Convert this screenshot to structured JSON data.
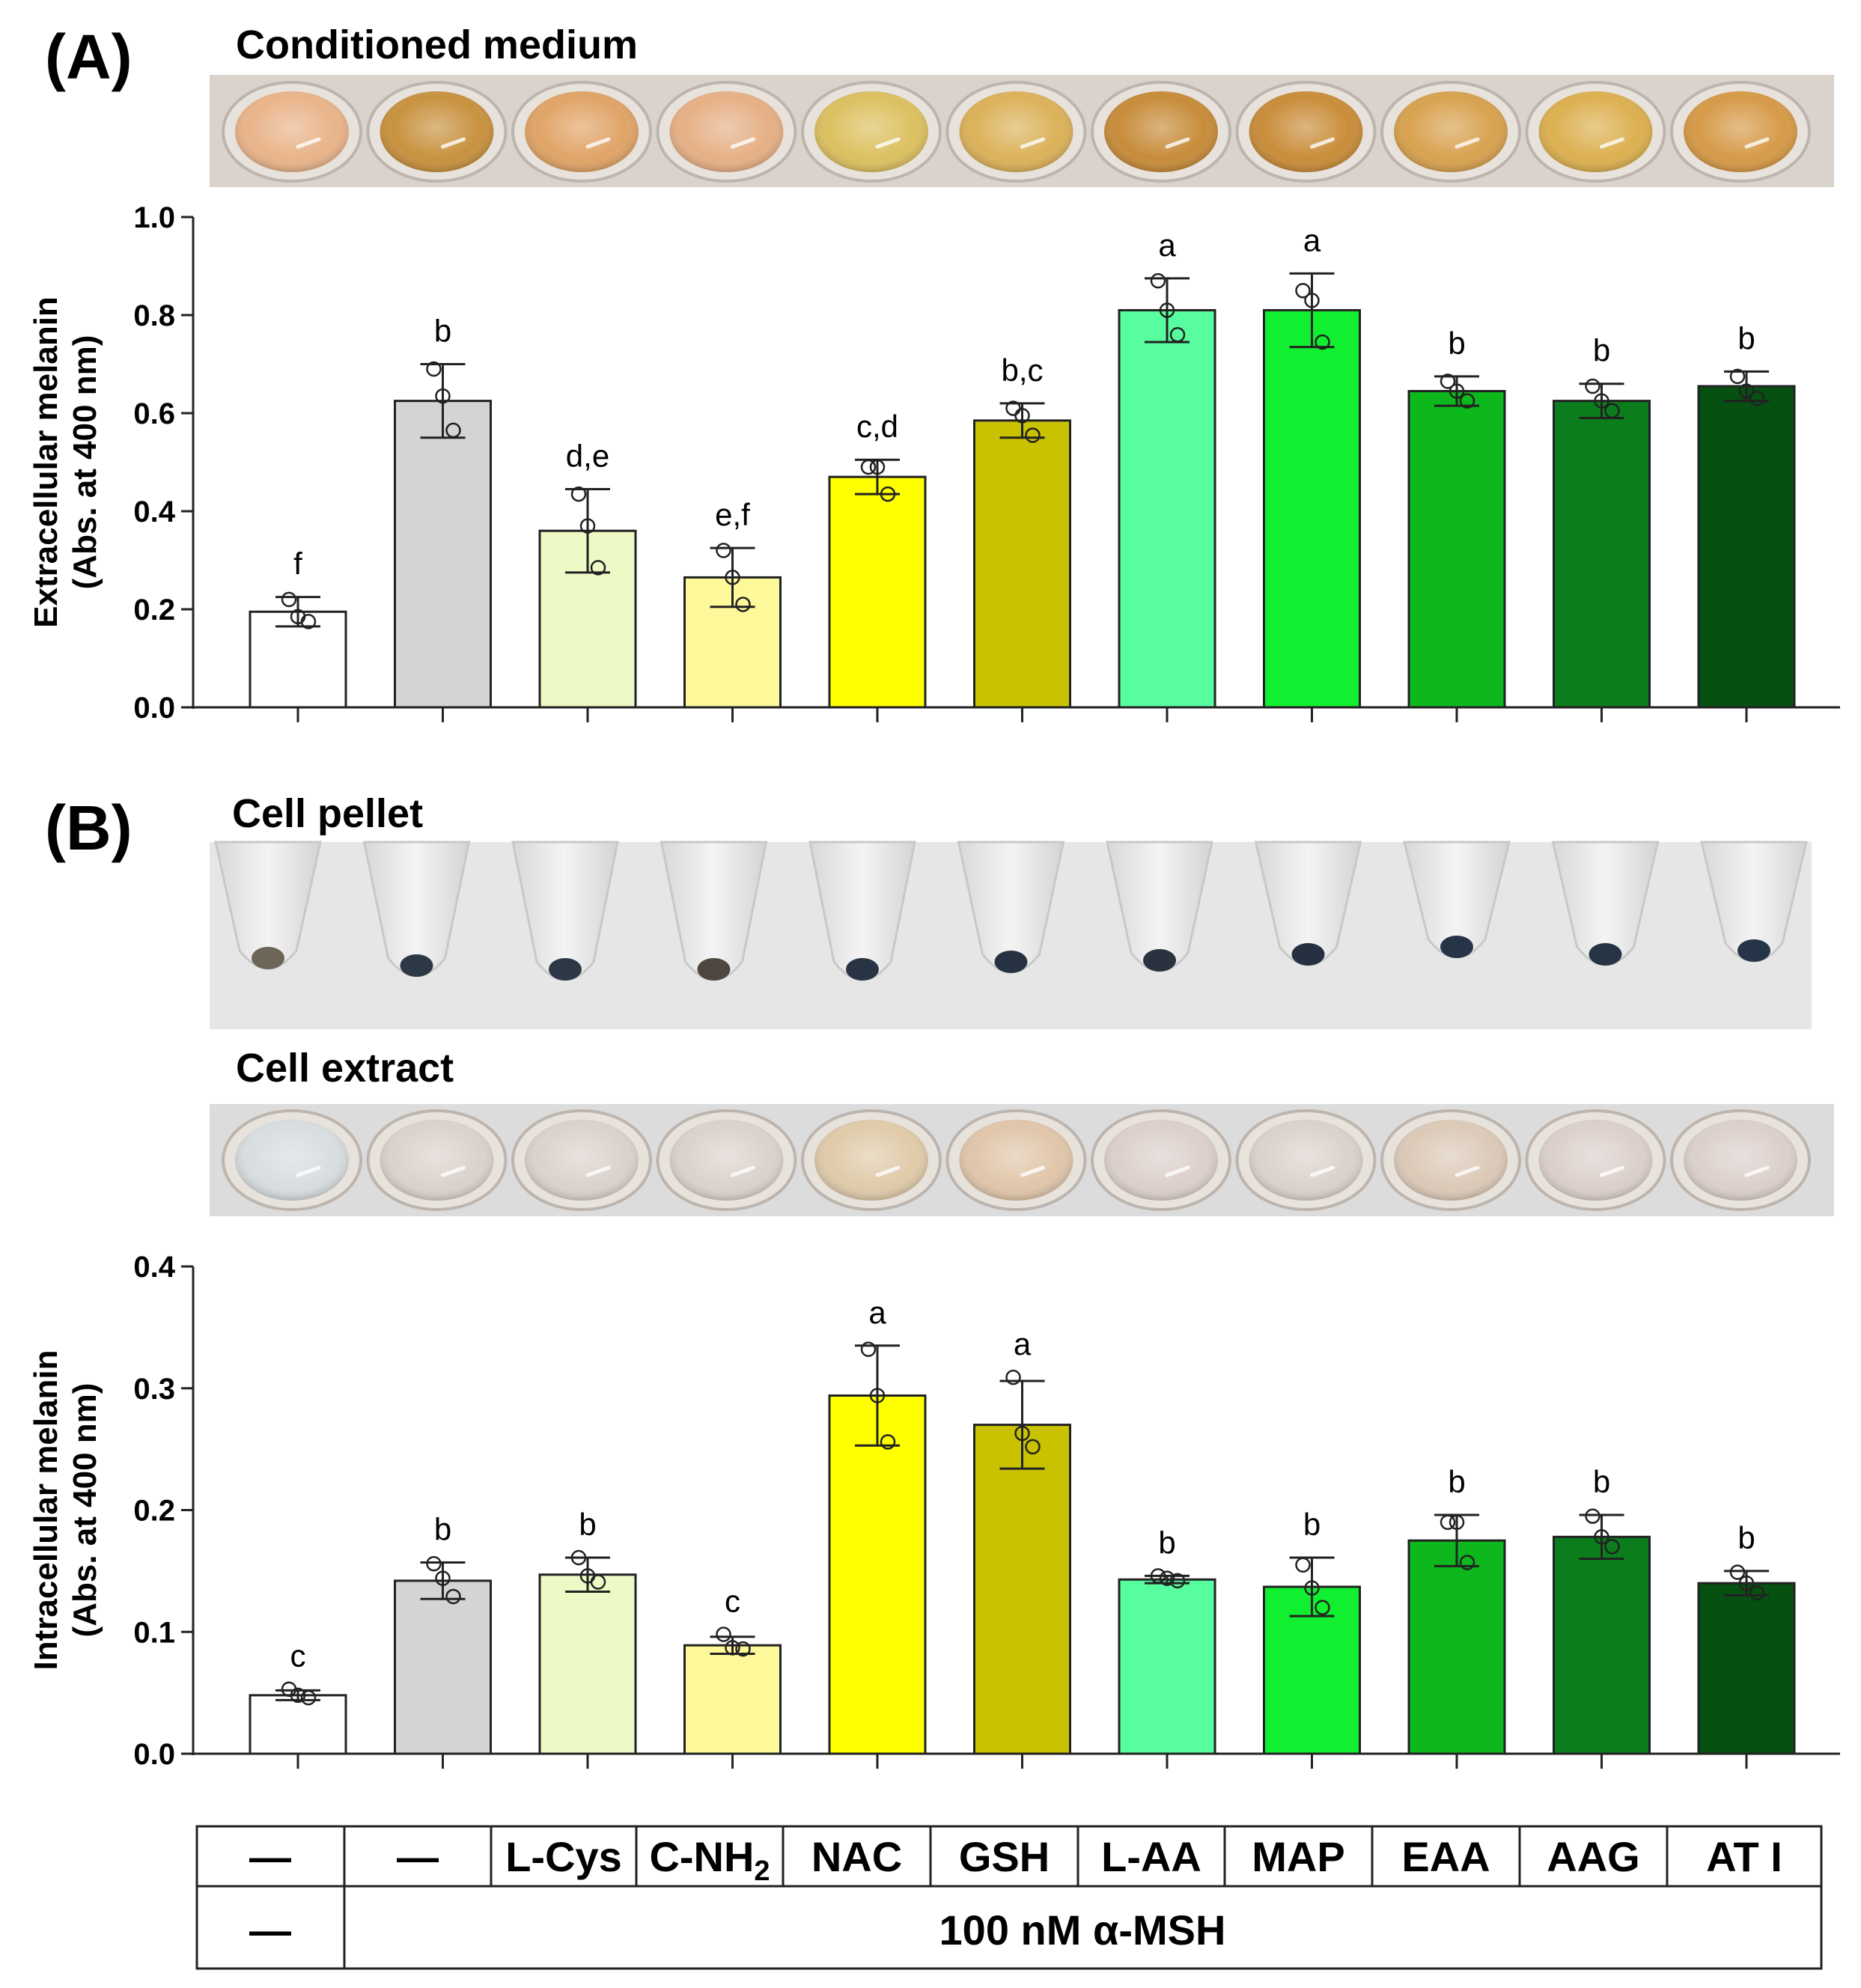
{
  "figure": {
    "panel_a_letter": "(A)",
    "panel_b_letter": "(B)",
    "conditioned_medium_title": "Conditioned medium",
    "cell_pellet_title": "Cell pellet",
    "cell_extract_title": "Cell extract"
  },
  "chart_data": [
    {
      "type": "bar",
      "panel": "A",
      "categories": [
        "—",
        "—",
        "L-Cys",
        "C-NH2",
        "NAC",
        "GSH",
        "L-AA",
        "MAP",
        "EAA",
        "AAG",
        "ATI"
      ],
      "values": [
        0.195,
        0.625,
        0.36,
        0.265,
        0.47,
        0.585,
        0.81,
        0.81,
        0.645,
        0.625,
        0.655
      ],
      "errors": [
        0.03,
        0.075,
        0.085,
        0.06,
        0.035,
        0.035,
        0.065,
        0.075,
        0.03,
        0.035,
        0.03
      ],
      "points": [
        [
          0.22,
          0.185,
          0.175
        ],
        [
          0.69,
          0.635,
          0.565
        ],
        [
          0.435,
          0.37,
          0.285
        ],
        [
          0.32,
          0.265,
          0.21
        ],
        [
          0.49,
          0.49,
          0.435
        ],
        [
          0.61,
          0.595,
          0.555
        ],
        [
          0.87,
          0.81,
          0.76
        ],
        [
          0.85,
          0.83,
          0.745
        ],
        [
          0.665,
          0.645,
          0.625
        ],
        [
          0.655,
          0.625,
          0.605
        ],
        [
          0.675,
          0.645,
          0.63
        ]
      ],
      "significance": [
        "f",
        "b",
        "d,e",
        "e,f",
        "c,d",
        "b,c",
        "a",
        "a",
        "b",
        "b",
        "b"
      ],
      "colors": [
        "#ffffff",
        "#d4d4d4",
        "#eefac6",
        "#fdf89a",
        "#ffff00",
        "#c9c200",
        "#58fda0",
        "#11f030",
        "#0cb81c",
        "#0b7d1c",
        "#065112"
      ],
      "ylabel_line1": "Extracellular melanin",
      "ylabel_line2": "(Abs. at 400 nm)",
      "ylim": [
        0,
        1.0
      ],
      "yticks": [
        0.0,
        0.2,
        0.4,
        0.6,
        0.8,
        1.0
      ],
      "ytick_labels": [
        "0.0",
        "0.2",
        "0.4",
        "0.6",
        "0.8",
        "1.0"
      ]
    },
    {
      "type": "bar",
      "panel": "B",
      "categories": [
        "—",
        "—",
        "L-Cys",
        "C-NH2",
        "NAC",
        "GSH",
        "L-AA",
        "MAP",
        "EAA",
        "AAG",
        "ATI"
      ],
      "values": [
        0.048,
        0.142,
        0.147,
        0.089,
        0.294,
        0.27,
        0.143,
        0.137,
        0.175,
        0.178,
        0.14
      ],
      "errors": [
        0.004,
        0.015,
        0.014,
        0.007,
        0.041,
        0.036,
        0.003,
        0.024,
        0.021,
        0.018,
        0.01
      ],
      "points": [
        [
          0.053,
          0.048,
          0.046
        ],
        [
          0.156,
          0.144,
          0.129
        ],
        [
          0.161,
          0.146,
          0.141
        ],
        [
          0.098,
          0.087,
          0.086
        ],
        [
          0.332,
          0.294,
          0.256
        ],
        [
          0.309,
          0.263,
          0.252
        ],
        [
          0.146,
          0.144,
          0.142
        ],
        [
          0.155,
          0.136,
          0.12
        ],
        [
          0.19,
          0.19,
          0.157
        ],
        [
          0.195,
          0.178,
          0.17
        ],
        [
          0.149,
          0.14,
          0.132
        ]
      ],
      "significance": [
        "c",
        "b",
        "b",
        "c",
        "a",
        "a",
        "b",
        "b",
        "b",
        "b",
        "b"
      ],
      "colors": [
        "#ffffff",
        "#d4d4d4",
        "#eefac6",
        "#fdf89a",
        "#ffff00",
        "#c9c200",
        "#58fda0",
        "#11f030",
        "#0cb81c",
        "#0b7d1c",
        "#065112"
      ],
      "ylabel_line1": "Intracellular melanin",
      "ylabel_line2": "(Abs. at 400 nm)",
      "ylim": [
        0,
        0.4
      ],
      "yticks": [
        0.0,
        0.1,
        0.2,
        0.3,
        0.4
      ],
      "ytick_labels": [
        "0.0",
        "0.1",
        "0.2",
        "0.3",
        "0.4"
      ]
    }
  ],
  "table": {
    "row1": [
      "—",
      "—",
      "L-Cys",
      "C-NH",
      "NAC",
      "GSH",
      "L-AA",
      "MAP",
      "EAA",
      "AAG",
      "AT I"
    ],
    "c_nh2_subscript": "2",
    "row2_first": "—",
    "row2_merged": "100 nM α-MSH"
  },
  "photo_colors": {
    "conditioned_medium": [
      "#e9b48a",
      "#c8923f",
      "#e0a467",
      "#e6b086",
      "#dcc060",
      "#dcb25a",
      "#c78c3a",
      "#c98d3a",
      "#d8a250",
      "#dcb050",
      "#d69a48"
    ],
    "pellets": [
      "#6d6558",
      "#2d3846",
      "#2d3846",
      "#4e4740",
      "#283444",
      "#263242",
      "#2a3240",
      "#263040",
      "#263448",
      "#263444",
      "#263448"
    ],
    "cell_extract": [
      "#d8dde0",
      "#dcd2cc",
      "#dcd2cc",
      "#dcd2cc",
      "#e0cbaa",
      "#e0c6aa",
      "#dcd0cc",
      "#dcd2cc",
      "#dccab8",
      "#dcd0cc",
      "#dcd0cc"
    ]
  }
}
